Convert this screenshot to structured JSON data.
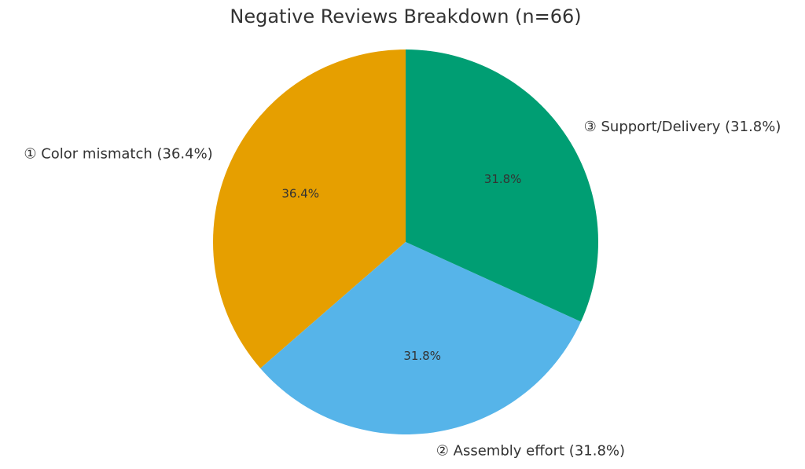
{
  "chart_data": {
    "type": "pie",
    "title": "Negative Reviews Breakdown (n=66)",
    "categories": [
      "① Color mismatch (36.4%)",
      "② Assembly effort (31.8%)",
      "③ Support/Delivery (31.8%)"
    ],
    "values": [
      36.4,
      31.8,
      31.8
    ],
    "value_labels": [
      "36.4%",
      "31.8%",
      "31.8%"
    ],
    "colors": [
      "#E69F00",
      "#56B4E9",
      "#009E73"
    ]
  }
}
